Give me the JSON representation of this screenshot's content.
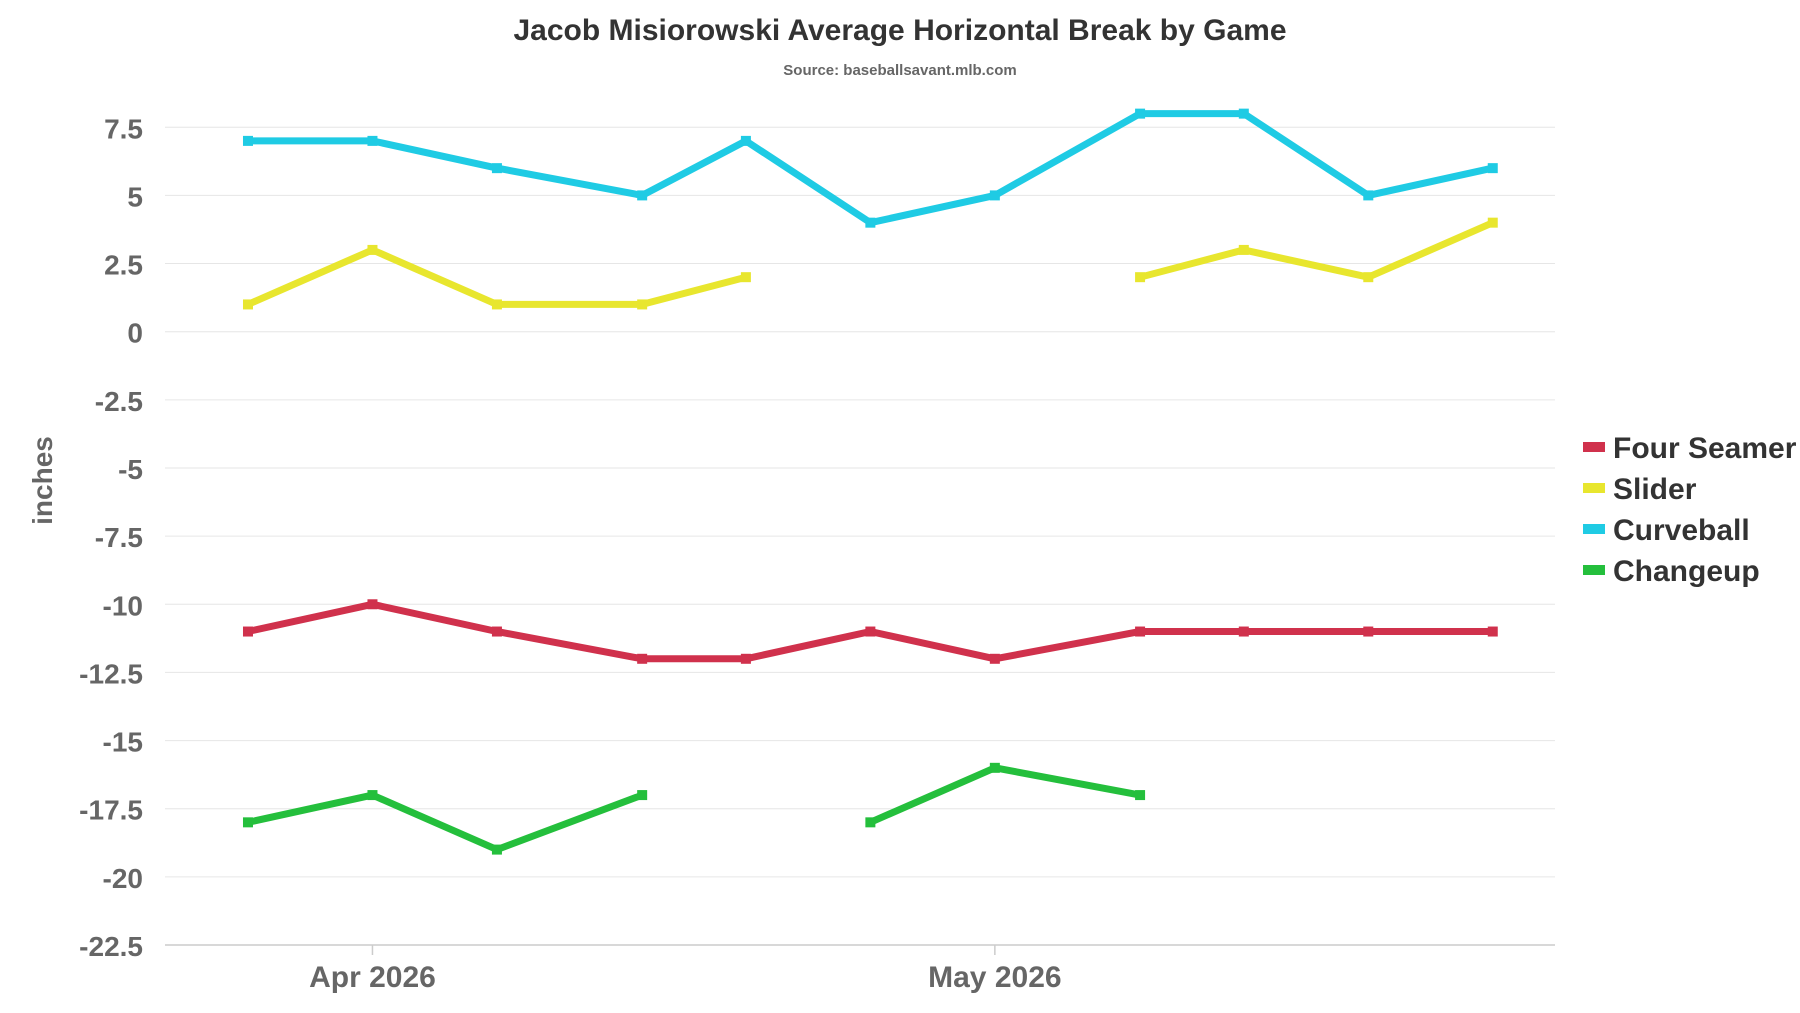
{
  "chart_data": {
    "type": "line",
    "title": "Jacob Misiorowski Average Horizontal Break by Game",
    "subtitle": "Source: baseballsavant.mlb.com",
    "ylabel": "inches",
    "xlabel": "",
    "ylim": [
      -22.5,
      8.5
    ],
    "y_ticks": [
      7.5,
      5,
      2.5,
      0,
      -2.5,
      -5,
      -7.5,
      -10,
      -12.5,
      -15,
      -17.5,
      -20,
      -22.5
    ],
    "y_tick_labels": [
      "7.5",
      "5",
      "2.5",
      "0",
      "-2.5",
      "-5",
      "-7.5",
      "-10",
      "-12.5",
      "-15",
      "-17.5",
      "-20",
      "-22.5"
    ],
    "xlim": [
      "2026-03-22",
      "2026-05-28"
    ],
    "x_ticks": [
      "2026-04-01",
      "2026-05-01"
    ],
    "x_tick_labels": [
      "Apr 2026",
      "May 2026"
    ],
    "x": [
      "2026-03-26",
      "2026-04-01",
      "2026-04-07",
      "2026-04-14",
      "2026-04-19",
      "2026-04-25",
      "2026-05-01",
      "2026-05-08",
      "2026-05-13",
      "2026-05-19",
      "2026-05-25"
    ],
    "grid": true,
    "legend_position": "right",
    "series": [
      {
        "name": "Four Seamer",
        "color": "#d0314c",
        "values": [
          -11,
          -10,
          -11,
          -12,
          -12,
          -11,
          -12,
          -11,
          -11,
          -11,
          -11
        ]
      },
      {
        "name": "Slider",
        "color": "#e8e62e",
        "values": [
          1,
          3,
          1,
          1,
          2,
          null,
          null,
          2,
          3,
          2,
          4
        ]
      },
      {
        "name": "Curveball",
        "color": "#1fcbe4",
        "values": [
          7,
          7,
          6,
          5,
          7,
          4,
          5,
          8,
          8,
          5,
          6
        ]
      },
      {
        "name": "Changeup",
        "color": "#24bf3c",
        "values": [
          -18,
          -17,
          -19,
          -17,
          null,
          -18,
          -16,
          -17,
          null,
          null,
          null
        ]
      }
    ]
  }
}
